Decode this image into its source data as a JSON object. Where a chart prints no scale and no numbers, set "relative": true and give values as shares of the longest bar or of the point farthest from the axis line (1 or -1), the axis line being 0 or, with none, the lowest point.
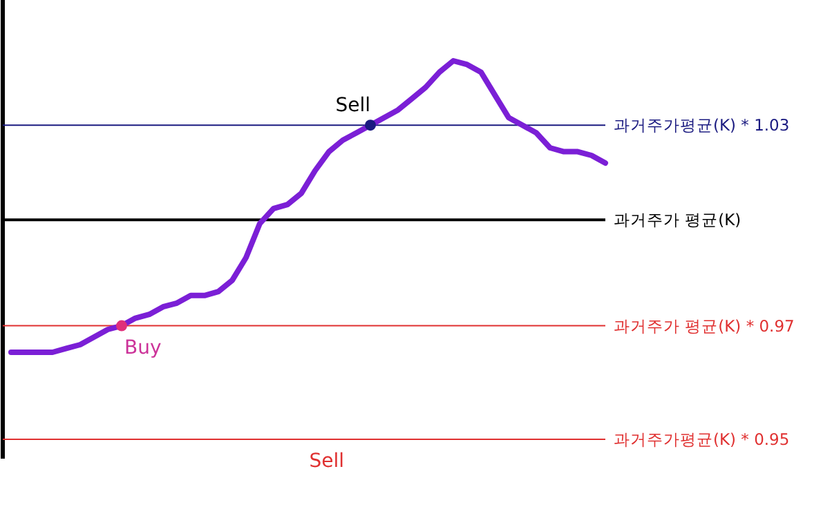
{
  "chart_data": {
    "type": "line",
    "relative": true,
    "categories": [
      null,
      null,
      null,
      null,
      null,
      null,
      null,
      null,
      null,
      null,
      null,
      null,
      null,
      null,
      null,
      null,
      null,
      null,
      null,
      null,
      null,
      null,
      null,
      null,
      null,
      null,
      null,
      null,
      null,
      null,
      null,
      null,
      null,
      null,
      null,
      null,
      null,
      null,
      null,
      null,
      null,
      null,
      null,
      null
    ],
    "series": [
      {
        "color": "#7b1fd6",
        "values": [
          0.23,
          0.23,
          0.23,
          0.23,
          0.24,
          0.25,
          0.27,
          0.29,
          0.3,
          0.32,
          0.33,
          0.35,
          0.36,
          0.38,
          0.38,
          0.39,
          0.42,
          0.48,
          0.57,
          0.61,
          0.62,
          0.65,
          0.71,
          0.76,
          0.79,
          0.81,
          0.83,
          0.85,
          0.87,
          0.9,
          0.93,
          0.97,
          1,
          0.99,
          0.97,
          0.91,
          0.85,
          0.83,
          0.81,
          0.77,
          0.76,
          0.76,
          0.75,
          0.73
        ]
      }
    ],
    "ref_lines": [
      {
        "axis": "y",
        "value": 0.83,
        "label": "과거주가평균(K) * 1.03",
        "color": "#1a1a80"
      },
      {
        "axis": "y",
        "value": 0.58,
        "label": "과거주가 평균(K)",
        "color": "#000000"
      },
      {
        "axis": "y",
        "value": 0.3,
        "label": "과거주가 평균(K) * 0.97",
        "color": "#e03030"
      },
      {
        "axis": "y",
        "value": 0,
        "label": "과거주가평균(K) * 0.95",
        "color": "#e03030"
      }
    ],
    "annotations": [
      {
        "text": "Sell",
        "y": 0.83
      },
      {
        "text": "Buy",
        "y": 0.3
      },
      {
        "text": "Sell",
        "y": 0
      }
    ],
    "line_style": "solid"
  }
}
